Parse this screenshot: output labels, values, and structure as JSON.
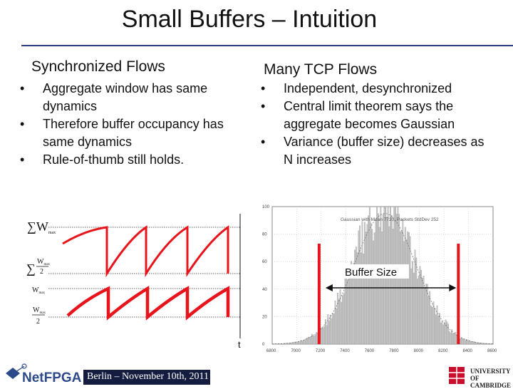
{
  "slide": {
    "title": "Small Buffers – Intuition",
    "left_column": {
      "heading": "Synchronized Flows",
      "bullets": [
        "Aggregate window has same dynamics",
        "Therefore buffer occupancy has same dynamics",
        "Rule-of-thumb still holds."
      ]
    },
    "right_column": {
      "heading": "Many TCP Flows",
      "bullets": [
        "Independent, desynchronized",
        "Central limit theorem says the aggregate becomes Gaussian",
        "Variance (buffer size) decreases as N increases"
      ]
    },
    "bullet_char": "•",
    "footer": "Berlin – November 10th, 2011",
    "logo_left": "NetFPGA",
    "logo_right": "UNIVERSITY OF CAMBRIDGE"
  },
  "sawtooth": {
    "y_label_top": "∑W",
    "y_label_top_sub": "max",
    "y_label_mid_num": "W",
    "y_label_mid_sub": "max",
    "y_label_mid_den": "2",
    "y_label_w": "W",
    "y_label_w_sub": "max",
    "y_label_half_num": "W",
    "y_label_half_sub": "max",
    "y_label_half_den": "2",
    "x_label": "t",
    "color": "#e8141b"
  },
  "histogram": {
    "chart_data": {
      "type": "bar",
      "title": "Gaussian with Mean 7720, Packets StdDev 252",
      "x_ticks": [
        "6800",
        "7000",
        "7200",
        "7400",
        "7600",
        "7800",
        "8000",
        "8200",
        "8400",
        "8600"
      ],
      "y_ticks": [
        "100",
        "80",
        "60",
        "40",
        "20",
        "0"
      ],
      "xlim": [
        6800,
        8600
      ],
      "ylim": [
        0,
        100
      ],
      "mean": 7720,
      "stddev": 252,
      "peak": 100,
      "buffer_bounds": [
        7200,
        8300
      ]
    },
    "annotation": "Buffer Size",
    "marker_color": "#e8141b"
  }
}
